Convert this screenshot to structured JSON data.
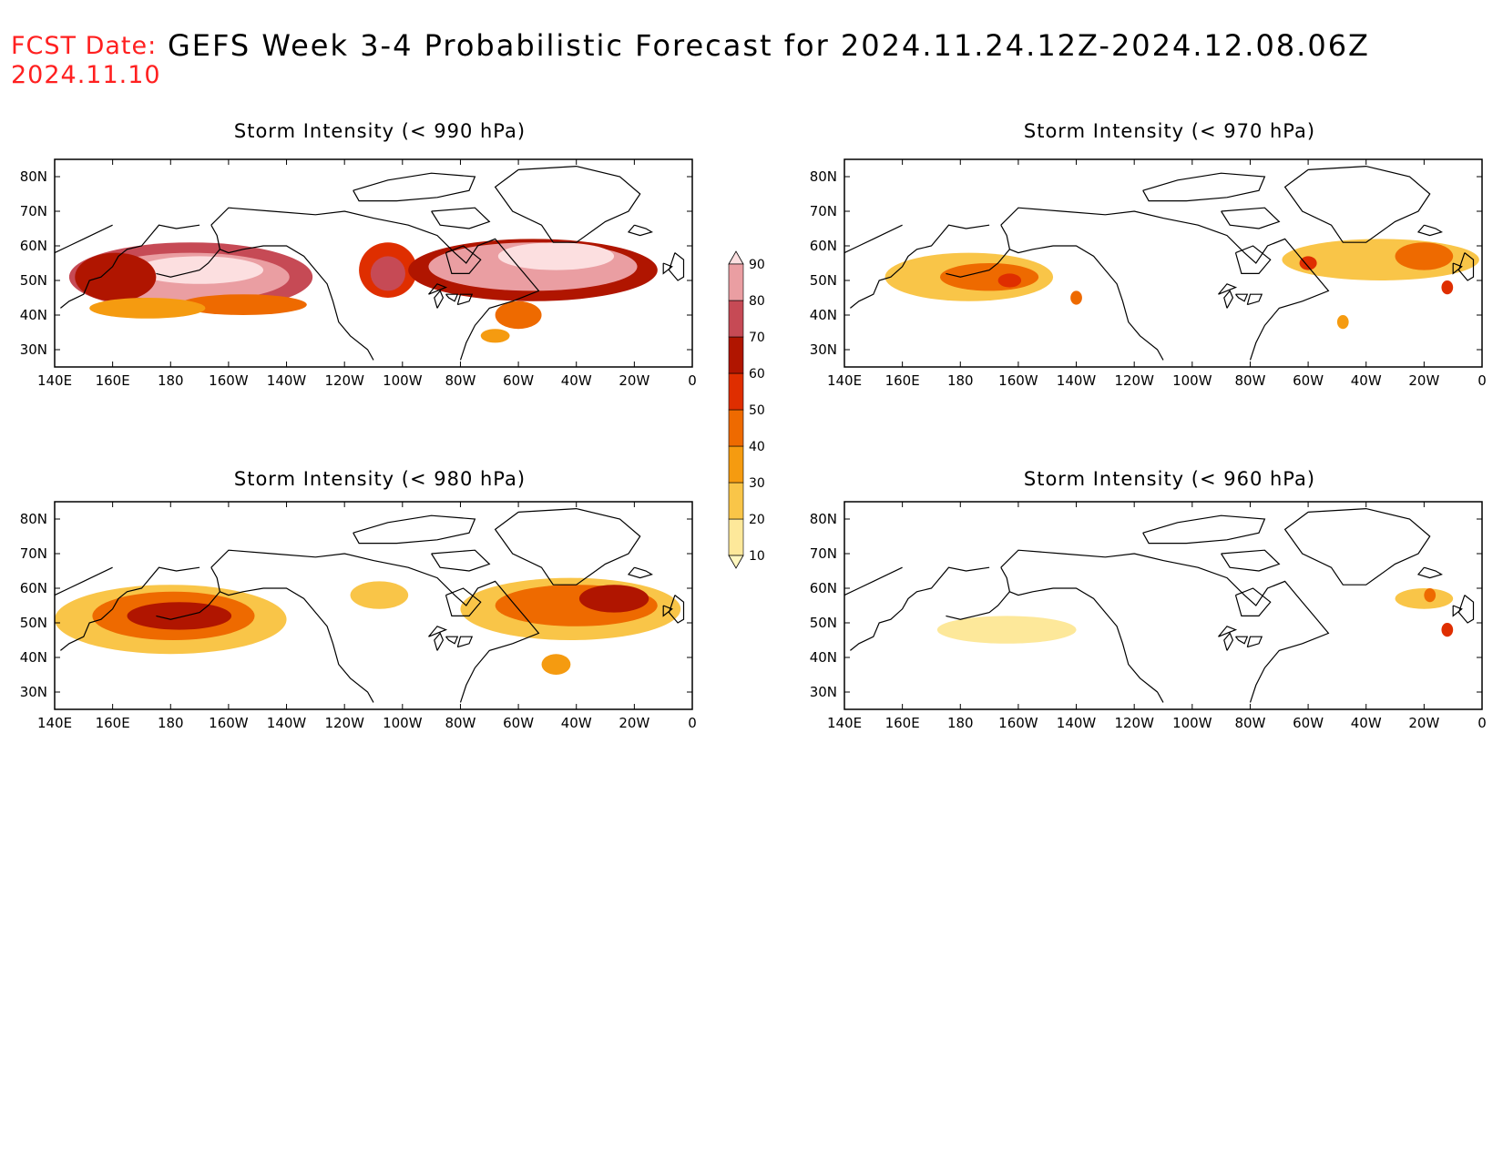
{
  "header": {
    "fcst_label": "FCST Date:",
    "fcst_date": "2024.11.10",
    "title": "GEFS Week 3-4 Probabilistic Forecast for 2024.11.24.12Z-2024.12.08.06Z"
  },
  "lat_labels": [
    "80N",
    "70N",
    "60N",
    "50N",
    "40N",
    "30N"
  ],
  "lat_values": [
    80,
    70,
    60,
    50,
    40,
    30
  ],
  "lon_labels": [
    "140E",
    "160E",
    "180",
    "160W",
    "140W",
    "120W",
    "100W",
    "80W",
    "60W",
    "40W",
    "20W",
    "0"
  ],
  "lon_values": [
    140,
    160,
    180,
    200,
    220,
    240,
    260,
    280,
    300,
    320,
    340,
    360
  ],
  "map_extent": {
    "lon": [
      140,
      360
    ],
    "lat": [
      25,
      85
    ]
  },
  "colorbar": {
    "levels": [
      10,
      20,
      30,
      40,
      50,
      60,
      70,
      80,
      90
    ],
    "labels": [
      "10",
      "20",
      "30",
      "40",
      "50",
      "60",
      "70",
      "80",
      "90"
    ],
    "colors": [
      "#fff7c0",
      "#fde89a",
      "#f9c548",
      "#f59b10",
      "#ee6a00",
      "#df2e00",
      "#b01500",
      "#c64a55",
      "#ea9ea2",
      "#fcdfe0"
    ]
  },
  "panels": [
    {
      "title": "Storm Intensity (< 990 hPa)",
      "regions": [
        {
          "lon": 187,
          "lat": 51,
          "rlon": 42,
          "rlat": 10,
          "p": 72
        },
        {
          "lon": 187,
          "lat": 51,
          "rlon": 34,
          "rlat": 7,
          "p": 85
        },
        {
          "lon": 190,
          "lat": 53,
          "rlon": 22,
          "rlat": 4,
          "p": 92
        },
        {
          "lon": 161,
          "lat": 51,
          "rlon": 14,
          "rlat": 7,
          "p": 62
        },
        {
          "lon": 205,
          "lat": 43,
          "rlon": 22,
          "rlat": 3,
          "p": 45
        },
        {
          "lon": 172,
          "lat": 42,
          "rlon": 20,
          "rlat": 3,
          "p": 38
        },
        {
          "lon": 255,
          "lat": 53,
          "rlon": 10,
          "rlat": 8,
          "p": 55
        },
        {
          "lon": 255,
          "lat": 52,
          "rlon": 6,
          "rlat": 5,
          "p": 70
        },
        {
          "lon": 305,
          "lat": 53,
          "rlon": 43,
          "rlat": 9,
          "p": 68
        },
        {
          "lon": 305,
          "lat": 54,
          "rlon": 36,
          "rlat": 7,
          "p": 80
        },
        {
          "lon": 313,
          "lat": 57,
          "rlon": 20,
          "rlat": 4,
          "p": 90
        },
        {
          "lon": 300,
          "lat": 40,
          "rlon": 8,
          "rlat": 4,
          "p": 42
        },
        {
          "lon": 292,
          "lat": 34,
          "rlon": 5,
          "rlat": 2,
          "p": 35
        }
      ]
    },
    {
      "title": "Storm Intensity (< 970 hPa)",
      "regions": [
        {
          "lon": 183,
          "lat": 51,
          "rlon": 29,
          "rlat": 7,
          "p": 26
        },
        {
          "lon": 190,
          "lat": 51,
          "rlon": 17,
          "rlat": 4,
          "p": 40
        },
        {
          "lon": 197,
          "lat": 50,
          "rlon": 4,
          "rlat": 2,
          "p": 58
        },
        {
          "lon": 220,
          "lat": 45,
          "rlon": 2,
          "rlat": 2,
          "p": 40
        },
        {
          "lon": 325,
          "lat": 56,
          "rlon": 34,
          "rlat": 6,
          "p": 24
        },
        {
          "lon": 340,
          "lat": 57,
          "rlon": 10,
          "rlat": 4,
          "p": 40
        },
        {
          "lon": 300,
          "lat": 55,
          "rlon": 3,
          "rlat": 2,
          "p": 50
        },
        {
          "lon": 348,
          "lat": 48,
          "rlon": 2,
          "rlat": 2,
          "p": 55
        },
        {
          "lon": 312,
          "lat": 38,
          "rlon": 2,
          "rlat": 2,
          "p": 34
        }
      ]
    },
    {
      "title": "Storm Intensity (< 980 hPa)",
      "regions": [
        {
          "lon": 180,
          "lat": 51,
          "rlon": 40,
          "rlat": 10,
          "p": 28
        },
        {
          "lon": 181,
          "lat": 52,
          "rlon": 28,
          "rlat": 7,
          "p": 45
        },
        {
          "lon": 183,
          "lat": 52,
          "rlon": 18,
          "rlat": 4,
          "p": 65
        },
        {
          "lon": 252,
          "lat": 58,
          "rlon": 10,
          "rlat": 4,
          "p": 22
        },
        {
          "lon": 318,
          "lat": 54,
          "rlon": 38,
          "rlat": 9,
          "p": 28
        },
        {
          "lon": 320,
          "lat": 55,
          "rlon": 28,
          "rlat": 6,
          "p": 45
        },
        {
          "lon": 333,
          "lat": 57,
          "rlon": 12,
          "rlat": 4,
          "p": 60
        },
        {
          "lon": 313,
          "lat": 38,
          "rlon": 5,
          "rlat": 3,
          "p": 38
        }
      ]
    },
    {
      "title": "Storm Intensity (< 960 hPa)",
      "regions": [
        {
          "lon": 196,
          "lat": 48,
          "rlon": 24,
          "rlat": 4,
          "p": 18
        },
        {
          "lon": 340,
          "lat": 57,
          "rlon": 10,
          "rlat": 3,
          "p": 22
        },
        {
          "lon": 342,
          "lat": 58,
          "rlon": 2,
          "rlat": 2,
          "p": 40
        },
        {
          "lon": 348,
          "lat": 48,
          "rlon": 2,
          "rlat": 2,
          "p": 55
        }
      ]
    }
  ]
}
